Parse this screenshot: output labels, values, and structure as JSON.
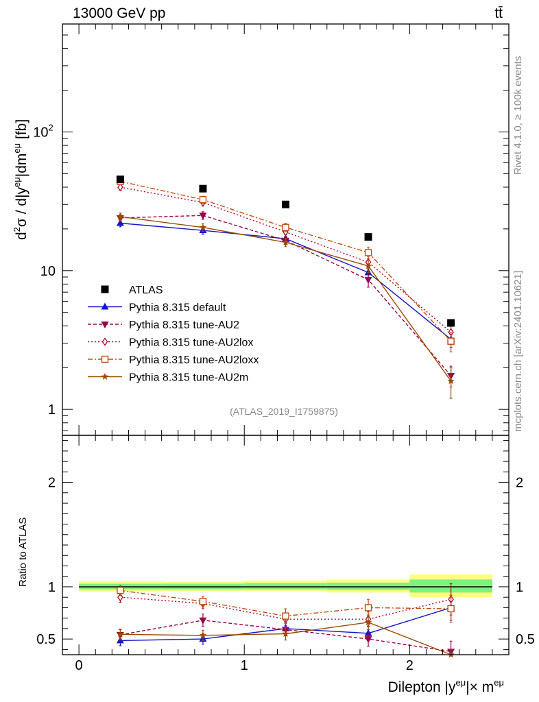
{
  "header": {
    "energy_label": "13000 GeV pp",
    "process_label": "tt̄",
    "rivet_label": "Rivet 4.1.0, ≥ 100k events",
    "mcplots_label": "mcplots.cern.ch [arXiv:2401.10621]",
    "analysis_label": "(ATLAS_2019_I1759875)"
  },
  "colors": {
    "data": "#000000",
    "default": "#1515c8",
    "au2": "#990045",
    "au2lox": "#b5002a",
    "au2loxx": "#c04a0a",
    "au2m": "#9b4a00",
    "band_yellow": "#ffff80",
    "band_green": "#80f080"
  },
  "chart_data": [
    {
      "type": "line",
      "panel": "main",
      "yscale": "log",
      "ylabel": "d²σ / d|yᵉᵘ|dmᵉᵘ [fb]",
      "ylabel_parts": {
        "main": "d",
        "sup1": "2",
        "mid": "σ / d|y",
        "sup2": "eμ",
        "mid2": "|dm",
        "sup3": "eμ",
        "end": " [fb]"
      },
      "xlim": [
        -0.1,
        2.6
      ],
      "ylim": [
        0.65,
        600
      ],
      "y_ticks": [
        {
          "value": 1,
          "label": "1"
        },
        {
          "value": 10,
          "label": "10"
        },
        {
          "value": 100,
          "label": "10",
          "sup": "2"
        }
      ],
      "x": [
        0.25,
        0.75,
        1.25,
        1.75,
        2.25
      ],
      "legend": [
        "ATLAS",
        "Pythia 8.315 default",
        "Pythia 8.315 tune-AU2",
        "Pythia 8.315 tune-AU2lox",
        "Pythia 8.315 tune-AU2loxx",
        "Pythia 8.315 tune-AU2m"
      ],
      "series": [
        {
          "key": "atlas",
          "name": "ATLAS",
          "marker": "square",
          "values": [
            45.5,
            39,
            30,
            17.5,
            4.2
          ],
          "errors": [
            0,
            0,
            0,
            0,
            0
          ]
        },
        {
          "key": "default",
          "name": "Pythia 8.315 default",
          "marker": "triangle-up",
          "dash": "",
          "values": [
            22,
            19.5,
            17,
            9.7,
            3.2
          ],
          "errors": [
            1.3,
            1.2,
            1.1,
            1.0,
            0.4
          ]
        },
        {
          "key": "au2",
          "name": "Pythia 8.315 tune-AU2",
          "marker": "triangle-down",
          "dash": "5,3",
          "values": [
            24,
            25,
            16.5,
            8.6,
            1.75
          ],
          "errors": [
            1.4,
            1.6,
            1.1,
            1.0,
            0.3
          ]
        },
        {
          "key": "au2lox",
          "name": "Pythia 8.315 tune-AU2lox",
          "marker": "diamond",
          "dash": "2,3",
          "values": [
            40,
            31,
            19,
            11.5,
            3.6
          ],
          "errors": [
            2.0,
            1.8,
            1.3,
            1.2,
            0.6
          ]
        },
        {
          "key": "au2loxx",
          "name": "Pythia 8.315 tune-AU2loxx",
          "marker": "square-open",
          "dash": "7,3,2,3",
          "values": [
            44,
            32.5,
            20.5,
            13.5,
            3.1
          ],
          "errors": [
            2.2,
            1.9,
            1.4,
            1.3,
            0.5
          ]
        },
        {
          "key": "au2m",
          "name": "Pythia 8.315 tune-AU2m",
          "marker": "star",
          "dash": "",
          "values": [
            24.5,
            20.5,
            16,
            10.8,
            1.6
          ],
          "errors": [
            1.5,
            1.3,
            1.1,
            1.1,
            0.4
          ]
        }
      ]
    },
    {
      "type": "line",
      "panel": "ratio",
      "ylabel": "Ratio to ATLAS",
      "xlabel": "Dilepton |yᵉᵘ|× mᵉᵘ",
      "xlabel_parts": {
        "main": "Dilepton |y",
        "sup1": "eμ",
        "mid": "|× m",
        "sup2": "eμ"
      },
      "xlim": [
        -0.1,
        2.6
      ],
      "ylim": [
        0.35,
        2.45
      ],
      "x_ticks": [
        {
          "value": 0,
          "label": "0"
        },
        {
          "value": 1,
          "label": "1"
        },
        {
          "value": 2,
          "label": "2"
        }
      ],
      "y_ticks": [
        {
          "value": 0.5,
          "label": "0.5"
        },
        {
          "value": 1,
          "label": "1"
        },
        {
          "value": 2,
          "label": "2"
        }
      ],
      "reference_line": 1,
      "bands": [
        {
          "x0": 0,
          "x1": 0.5,
          "yellow": [
            0.955,
            1.055
          ],
          "green": [
            0.975,
            1.03
          ]
        },
        {
          "x0": 0.5,
          "x1": 1.0,
          "yellow": [
            0.96,
            1.05
          ],
          "green": [
            0.975,
            1.03
          ]
        },
        {
          "x0": 1.0,
          "x1": 1.5,
          "yellow": [
            0.955,
            1.06
          ],
          "green": [
            0.975,
            1.035
          ]
        },
        {
          "x0": 1.5,
          "x1": 2.0,
          "yellow": [
            0.945,
            1.07
          ],
          "green": [
            0.97,
            1.04
          ]
        },
        {
          "x0": 2.0,
          "x1": 2.5,
          "yellow": [
            0.9,
            1.12
          ],
          "green": [
            0.945,
            1.07
          ]
        }
      ],
      "x": [
        0.25,
        0.75,
        1.25,
        1.75,
        2.25
      ],
      "series": [
        {
          "key": "default",
          "marker": "triangle-up",
          "dash": "",
          "values": [
            0.485,
            0.5,
            0.6,
            0.555,
            0.8
          ],
          "errors": [
            0.05,
            0.05,
            0.06,
            0.07,
            0.12
          ]
        },
        {
          "key": "au2",
          "marker": "triangle-down",
          "dash": "5,3",
          "values": [
            0.54,
            0.68,
            0.59,
            0.5,
            0.38
          ],
          "errors": [
            0.05,
            0.06,
            0.06,
            0.07,
            0.1
          ]
        },
        {
          "key": "au2lox",
          "marker": "diamond",
          "dash": "2,3",
          "values": [
            0.9,
            0.84,
            0.69,
            0.69,
            0.88
          ],
          "errors": [
            0.05,
            0.05,
            0.06,
            0.07,
            0.15
          ]
        },
        {
          "key": "au2loxx",
          "marker": "square-open",
          "dash": "7,3,2,3",
          "values": [
            0.965,
            0.86,
            0.72,
            0.8,
            0.79
          ],
          "errors": [
            0.05,
            0.05,
            0.07,
            0.08,
            0.13
          ]
        },
        {
          "key": "au2m",
          "marker": "star",
          "dash": "",
          "values": [
            0.545,
            0.535,
            0.55,
            0.66,
            0.3
          ],
          "errors": [
            0.05,
            0.05,
            0.06,
            0.07,
            0.1
          ]
        }
      ]
    }
  ]
}
